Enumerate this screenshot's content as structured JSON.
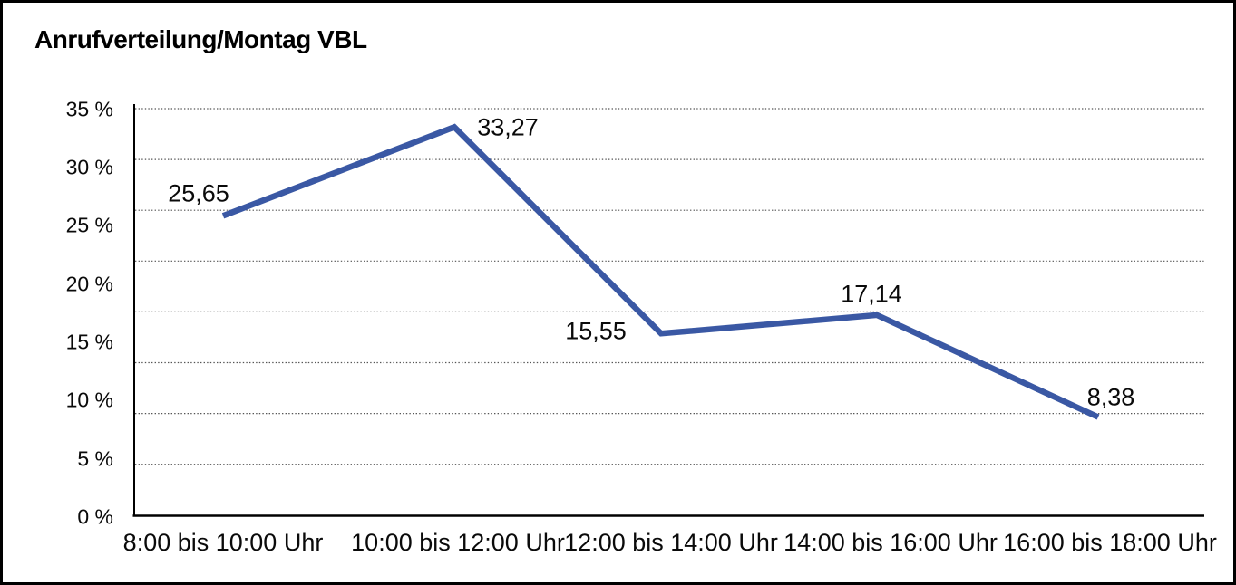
{
  "title": "Anrufverteilung/Montag VBL",
  "chart_data": {
    "type": "line",
    "title": "Anrufverteilung/Montag VBL",
    "categories": [
      "8:00 bis 10:00 Uhr",
      "10:00 bis 12:00 Uhr",
      "12:00 bis 14:00 Uhr",
      "14:00 bis 16:00 Uhr",
      "16:00 bis 18:00 Uhr"
    ],
    "values": [
      25.65,
      33.27,
      15.55,
      17.14,
      8.38
    ],
    "value_labels": [
      "25,65",
      "33,27",
      "15,55",
      "17,14",
      "8,38"
    ],
    "xlabel": "",
    "ylabel": "",
    "ylim": [
      0,
      35
    ],
    "y_ticks": [
      {
        "label": "35 %",
        "value": 35
      },
      {
        "label": "30 %",
        "value": 30
      },
      {
        "label": "25 %",
        "value": 25
      },
      {
        "label": "20 %",
        "value": 20
      },
      {
        "label": "15 %",
        "value": 15
      },
      {
        "label": "10 %",
        "value": 10
      },
      {
        "label": "5 %",
        "value": 5
      },
      {
        "label": "0 %",
        "value": 0
      }
    ],
    "grid": "horizontal-dotted",
    "legend": "none",
    "colors": {
      "line": "#3a58a4",
      "axis": "#000000",
      "gridline": "#555555",
      "text": "#0a0a0a",
      "background": "#ffffff",
      "frame_border": "#000000"
    }
  }
}
